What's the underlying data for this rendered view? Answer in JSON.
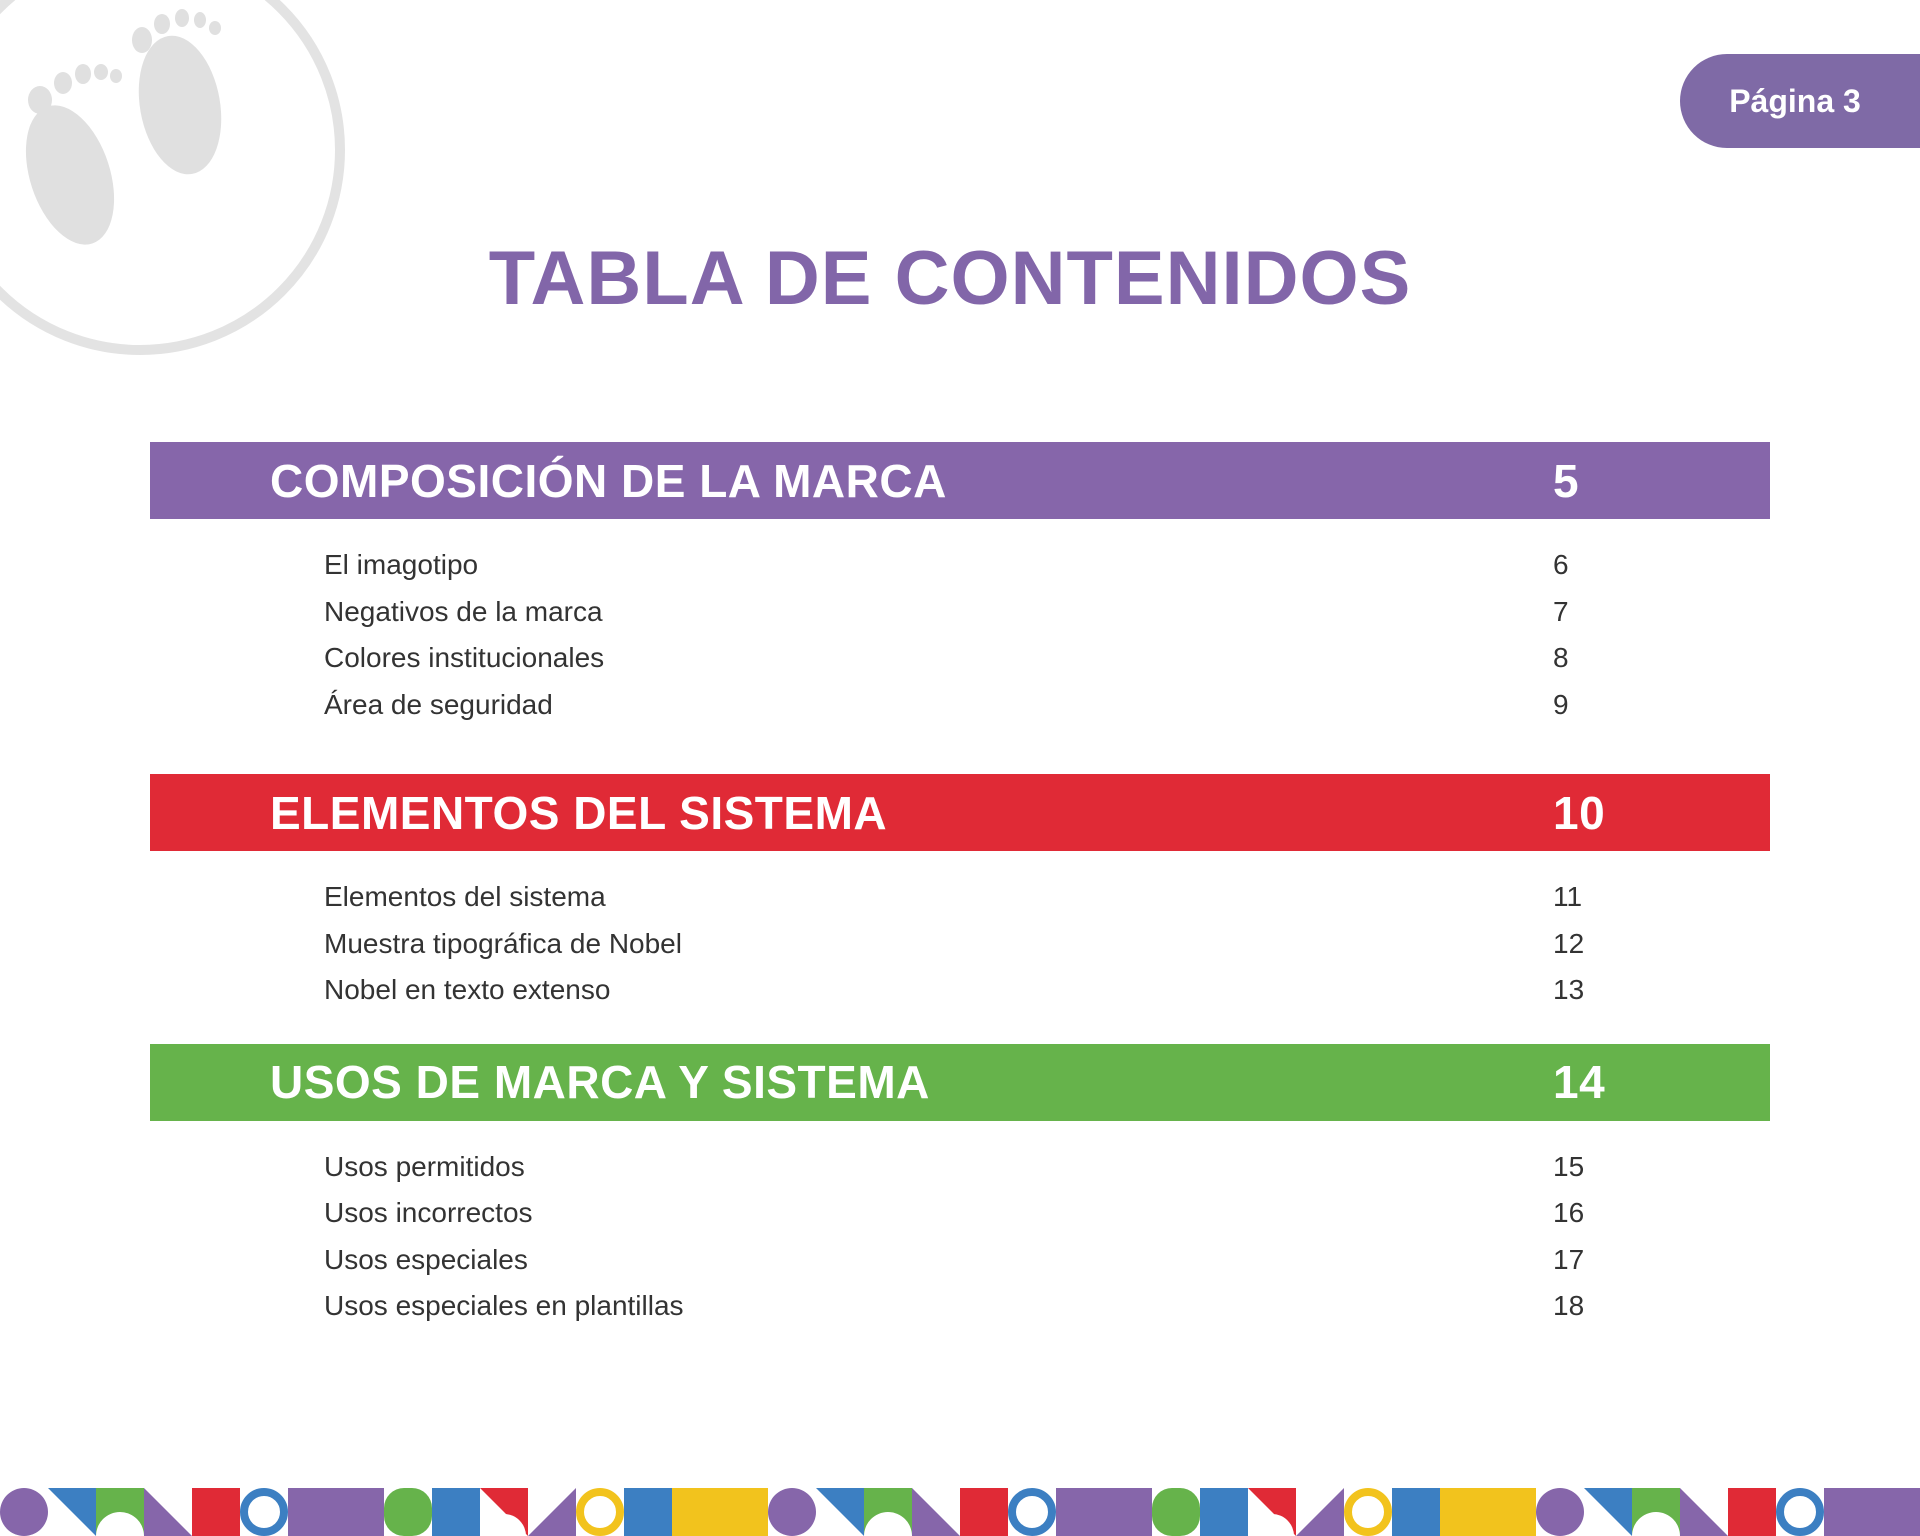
{
  "header": {
    "page_label": "Página 3",
    "logo_icon": "baby-footprints-icon"
  },
  "title": "TABLA DE CONTENIDOS",
  "colors": {
    "purple": "#8666aa",
    "red": "#e02a36",
    "green": "#66b34b",
    "blue": "#3c7fc2",
    "yellow": "#f2c31d",
    "title_purple": "#8266a9",
    "tab_purple": "#7f6aa6"
  },
  "sections": [
    {
      "title": "COMPOSICIÓN DE LA MARCA",
      "page": "5",
      "color": "#8666aa",
      "entries": [
        {
          "title": "El imagotipo",
          "page": "6"
        },
        {
          "title": "Negativos de la marca",
          "page": "7"
        },
        {
          "title": "Colores institucionales",
          "page": "8"
        },
        {
          "title": "Área de seguridad",
          "page": "9"
        }
      ]
    },
    {
      "title": "ELEMENTOS DEL SISTEMA",
      "page": "10",
      "color": "#e02a36",
      "entries": [
        {
          "title": "Elementos del sistema",
          "page": "11"
        },
        {
          "title": "Muestra tipográfica de Nobel",
          "page": "12"
        },
        {
          "title": "Nobel en texto extenso",
          "page": "13"
        }
      ]
    },
    {
      "title": "USOS DE MARCA Y SISTEMA",
      "page": "14",
      "color": "#66b34b",
      "entries": [
        {
          "title": "Usos permitidos",
          "page": "15"
        },
        {
          "title": "Usos incorrectos",
          "page": "16"
        },
        {
          "title": "Usos especiales",
          "page": "17"
        },
        {
          "title": "Usos especiales en plantillas",
          "page": "18"
        }
      ]
    }
  ],
  "footer": {
    "pattern_icon": "geometric-shapes-pattern"
  }
}
